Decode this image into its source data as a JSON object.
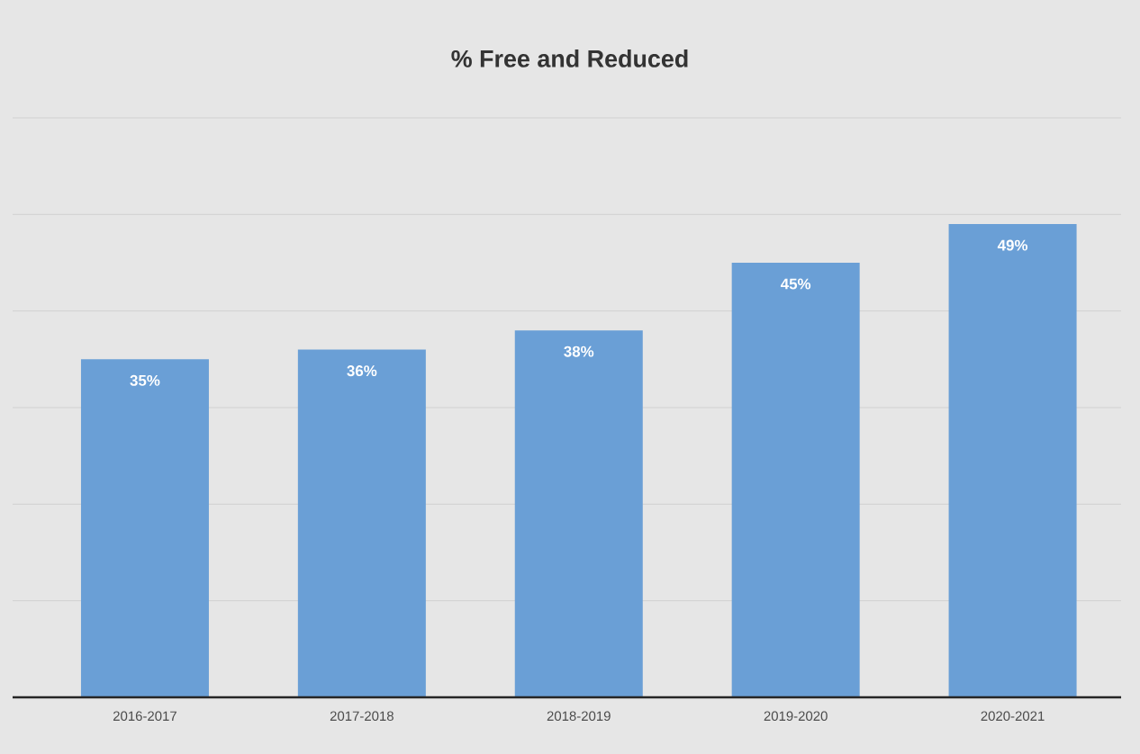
{
  "chart_data": {
    "type": "bar",
    "title": "% Free and Reduced",
    "categories": [
      "2016-2017",
      "2017-2018",
      "2018-2019",
      "2019-2020",
      "2020-2021"
    ],
    "values": [
      35,
      36,
      38,
      45,
      49
    ],
    "value_labels": [
      "35%",
      "36%",
      "38%",
      "45%",
      "49%"
    ],
    "color": "#6a9fd6",
    "ylim": [
      0,
      60
    ],
    "yticks": [
      {
        "value": 0,
        "label": null
      },
      {
        "value": 10,
        "label": null
      },
      {
        "value": 20,
        "label": null
      },
      {
        "value": 30,
        "label": null
      },
      {
        "value": 40,
        "label": null
      },
      {
        "value": 50,
        "label": null
      },
      {
        "value": 60,
        "label": null
      }
    ],
    "grid": "y",
    "tick_labels": "x"
  }
}
